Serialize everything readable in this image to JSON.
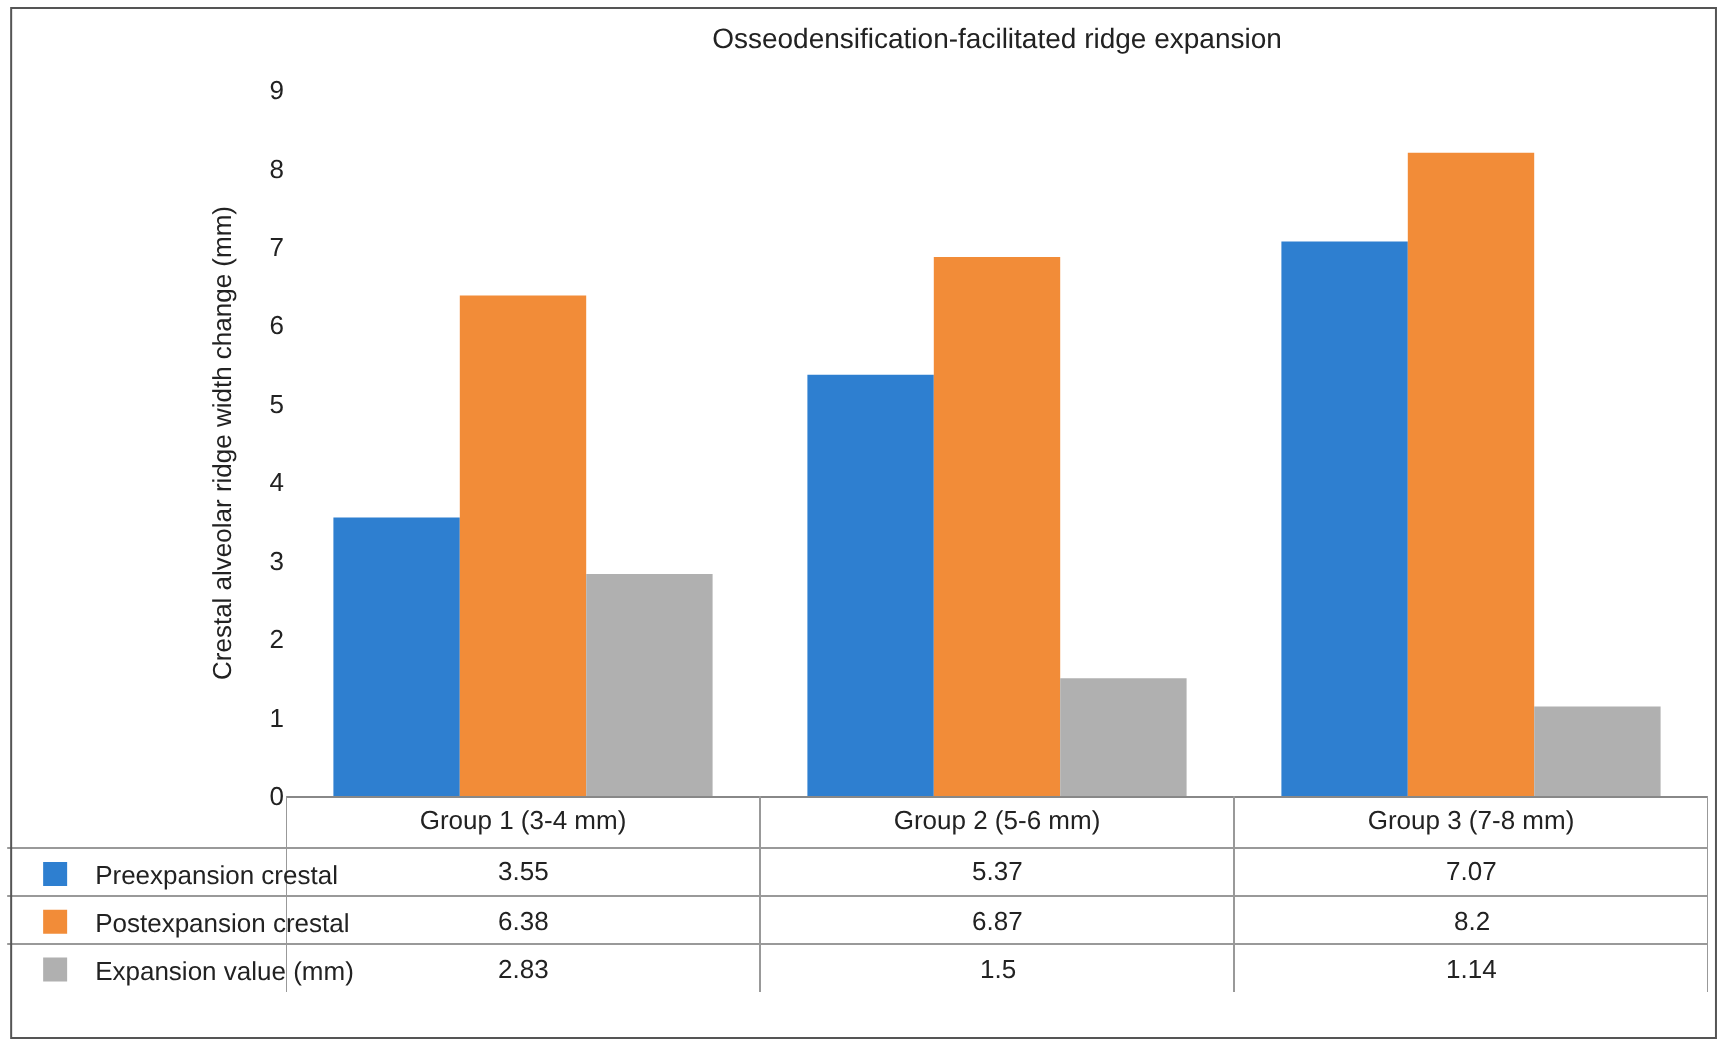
{
  "chart_data": {
    "type": "bar",
    "title": "Osseodensification-facilitated ridge expansion",
    "ylabel": "Crestal alveolar ridge width change (mm)",
    "categories": [
      "Group 1 (3-4 mm)",
      "Group 2 (5-6 mm)",
      "Group 3 (7-8 mm)"
    ],
    "series": [
      {
        "name": "Preexpansion crestal",
        "color": "#2e7fd0",
        "values": [
          3.55,
          5.37,
          7.07
        ]
      },
      {
        "name": "Postexpansion crestal",
        "color": "#f28c38",
        "values": [
          6.38,
          6.87,
          8.2
        ]
      },
      {
        "name": "Expansion value (mm)",
        "color": "#b0b0b0",
        "values": [
          2.83,
          1.5,
          1.14
        ]
      }
    ],
    "ylim": [
      0,
      9
    ],
    "yticks": [
      0,
      1,
      2,
      3,
      4,
      5,
      6,
      7,
      8,
      9
    ],
    "legend": "bottom left",
    "data_labels": true
  }
}
